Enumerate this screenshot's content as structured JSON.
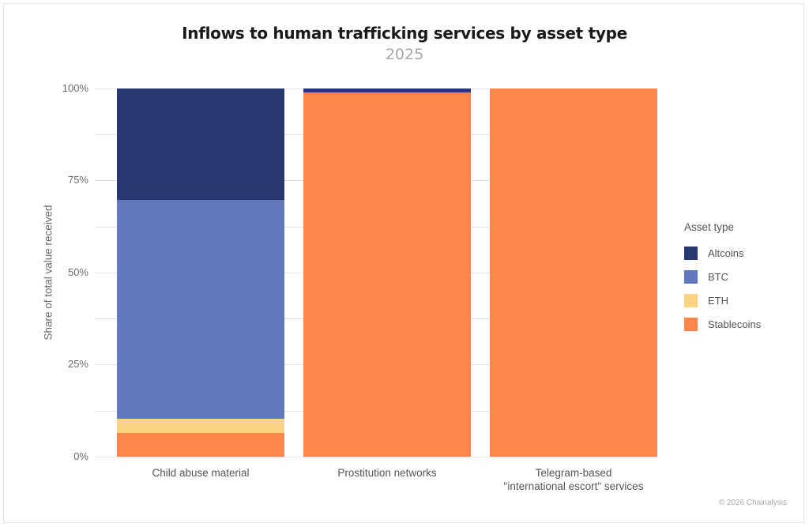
{
  "header": {
    "title": "Inflows to human trafficking services by asset type",
    "subtitle": "2025"
  },
  "axes": {
    "ylabel": "Share of total value received",
    "yticks": [
      "100%",
      "75%",
      "50%",
      "25%",
      "0%"
    ]
  },
  "legend": {
    "title": "Asset type",
    "items": [
      {
        "label": "Altcoins",
        "color": "#283870"
      },
      {
        "label": "BTC",
        "color": "#6178bb"
      },
      {
        "label": "ETH",
        "color": "#fcd381"
      },
      {
        "label": "Stablecoins",
        "color": "#fe864b"
      }
    ]
  },
  "categories": [
    {
      "label": "Child abuse material",
      "label2": ""
    },
    {
      "label": "Prostitution networks",
      "label2": ""
    },
    {
      "label": "Telegram-based",
      "label2": "\"international escort\" services"
    }
  ],
  "credit": "© 2026 Chainalysis",
  "chart_data": {
    "type": "bar",
    "stacked": true,
    "normalized": true,
    "title": "Inflows to human trafficking services by asset type",
    "subtitle": "2025",
    "xlabel": "",
    "ylabel": "Share of total value received",
    "ylim": [
      0,
      100
    ],
    "yticks": [
      0,
      25,
      50,
      75,
      100
    ],
    "ytick_labels": [
      "0%",
      "25%",
      "50%",
      "75%",
      "100%"
    ],
    "grid": true,
    "legend_position": "right",
    "legend_title": "Asset type",
    "categories": [
      "Child abuse material",
      "Prostitution networks",
      "Telegram-based \"international escort\" services"
    ],
    "series": [
      {
        "name": "Stablecoins",
        "color": "#fe864b",
        "values": [
          6.4,
          99.0,
          100.0
        ]
      },
      {
        "name": "ETH",
        "color": "#fcd381",
        "values": [
          3.9,
          0.0,
          0.0
        ]
      },
      {
        "name": "BTC",
        "color": "#6178bb",
        "values": [
          59.4,
          0.0,
          0.0
        ]
      },
      {
        "name": "Altcoins",
        "color": "#283870",
        "values": [
          30.3,
          1.0,
          0.0
        ]
      }
    ]
  }
}
